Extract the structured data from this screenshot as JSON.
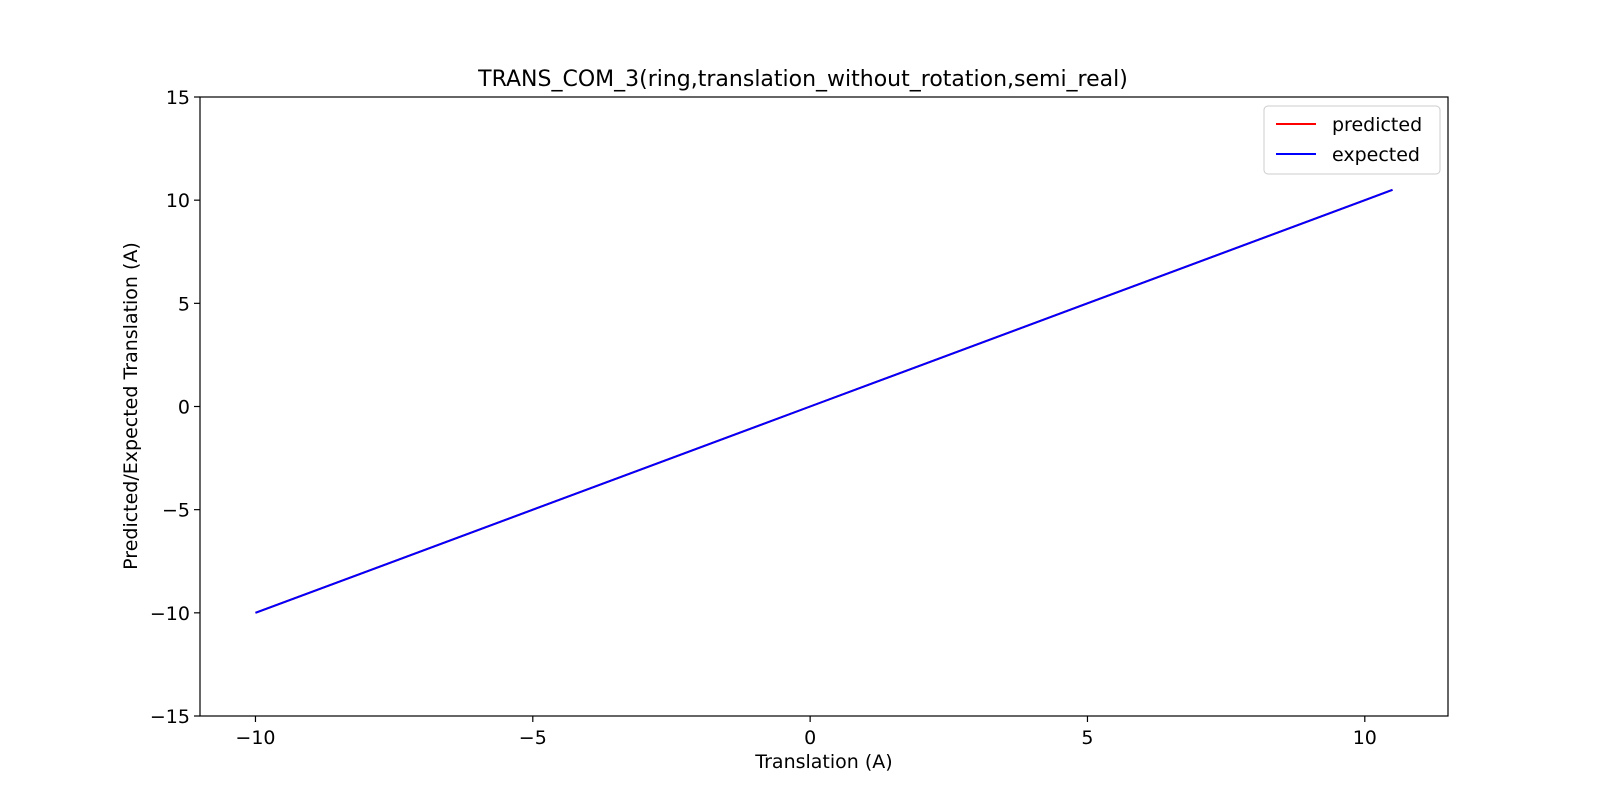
{
  "chart_data": {
    "type": "line",
    "title": "TRANS_COM_3(ring,translation_without_rotation,semi_real)",
    "xlabel": "Translation (A)",
    "ylabel": "Predicted/Expected Translation (A)",
    "xlim": [
      -11,
      11.5
    ],
    "ylim": [
      -15,
      15
    ],
    "xticks": [
      -10,
      -5,
      0,
      5,
      10
    ],
    "xtick_labels": [
      "−10",
      "−5",
      "0",
      "5",
      "10"
    ],
    "yticks": [
      -15,
      -10,
      -5,
      0,
      5,
      10,
      15
    ],
    "ytick_labels": [
      "−15",
      "−10",
      "−5",
      "0",
      "5",
      "10",
      "15"
    ],
    "grid": false,
    "legend_position": "top-right",
    "series": [
      {
        "name": "predicted",
        "color": "#ff0000",
        "x": [
          -10,
          -5,
          0,
          5,
          10,
          10.5
        ],
        "y": [
          -10,
          -5,
          0,
          5,
          10,
          10.5
        ]
      },
      {
        "name": "expected",
        "color": "#0000ff",
        "x": [
          -10,
          -5,
          0,
          5,
          10,
          10.5
        ],
        "y": [
          -10,
          -5,
          0,
          5,
          10,
          10.5
        ]
      }
    ]
  }
}
